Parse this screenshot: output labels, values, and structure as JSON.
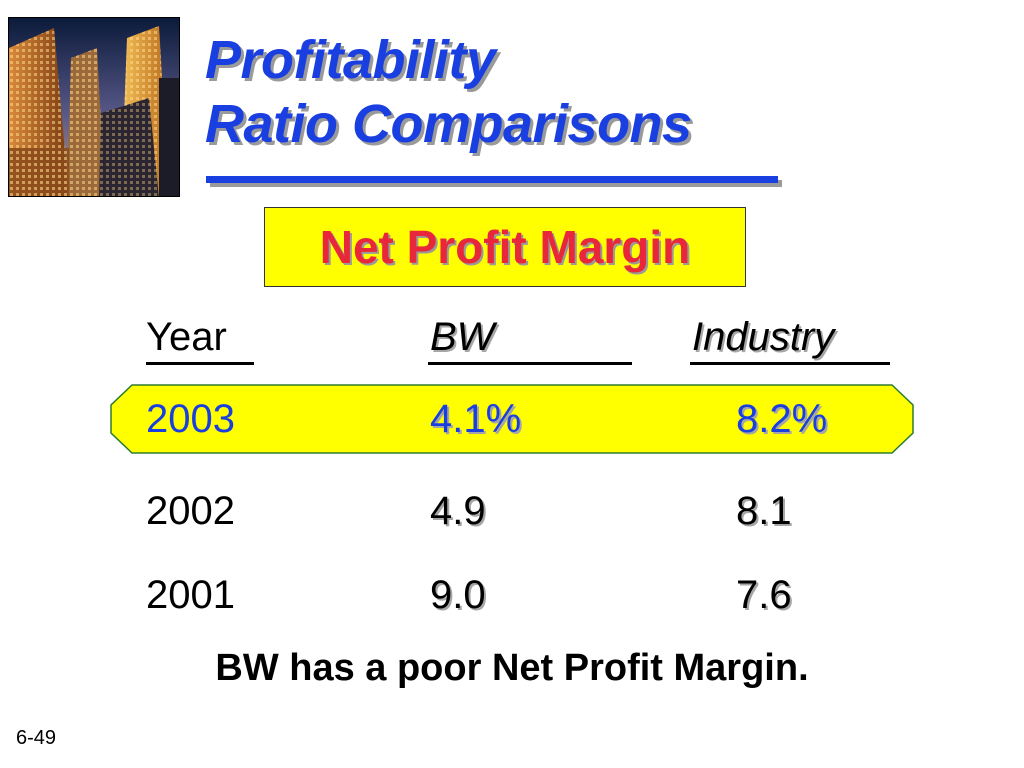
{
  "slide": {
    "title_line1": "Profitability",
    "title_line2": "Ratio Comparisons",
    "boxed_label": "Net Profit Margin",
    "photo_icon": "skyscrapers-photo"
  },
  "table": {
    "headers": {
      "year": "Year",
      "bw": "BW",
      "industry": "Industry"
    },
    "rows": [
      {
        "year": "2003",
        "bw": "4.1%",
        "industry": "8.2%"
      },
      {
        "year": "2002",
        "bw": "4.9",
        "industry": "8.1"
      },
      {
        "year": "2001",
        "bw": "9.0",
        "industry": "7.6"
      }
    ],
    "highlight_color": "#ffff00",
    "highlight_text_color": "#1a3fe0"
  },
  "conclusion": "BW has a poor Net Profit Margin.",
  "slide_number": "6-49",
  "colors": {
    "title": "#1a3fe0",
    "label_text": "#e8283a",
    "label_box": "#ffff00"
  }
}
